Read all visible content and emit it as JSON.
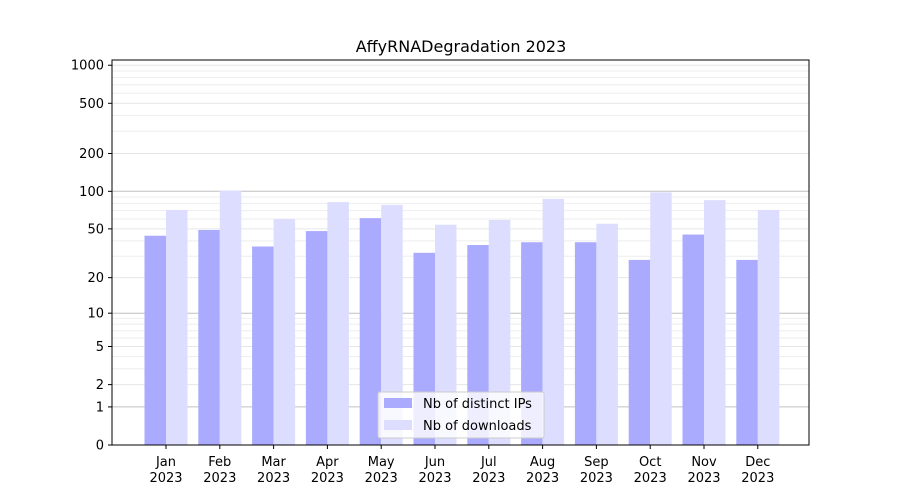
{
  "chart_data": {
    "type": "bar",
    "title": "AffyRNADegradation 2023",
    "xlabel": "",
    "ylabel": "",
    "y_scale": "log1p",
    "ylim": [
      0,
      1100
    ],
    "y_ticks": [
      0,
      1,
      2,
      5,
      10,
      20,
      50,
      100,
      200,
      500,
      1000
    ],
    "grid": "horizontal",
    "legend_position": "bottom-center",
    "categories": [
      [
        "Jan",
        "2023"
      ],
      [
        "Feb",
        "2023"
      ],
      [
        "Mar",
        "2023"
      ],
      [
        "Apr",
        "2023"
      ],
      [
        "May",
        "2023"
      ],
      [
        "Jun",
        "2023"
      ],
      [
        "Jul",
        "2023"
      ],
      [
        "Aug",
        "2023"
      ],
      [
        "Sep",
        "2023"
      ],
      [
        "Oct",
        "2023"
      ],
      [
        "Nov",
        "2023"
      ],
      [
        "Dec",
        "2023"
      ]
    ],
    "series": [
      {
        "name": "Nb of distinct IPs",
        "color": "#aaaaff",
        "values": [
          44,
          49,
          36,
          48,
          61,
          32,
          37,
          39,
          39,
          28,
          45,
          28
        ]
      },
      {
        "name": "Nb of downloads",
        "color": "#ddddff",
        "values": [
          71,
          101,
          60,
          82,
          78,
          54,
          59,
          87,
          55,
          98,
          85,
          71
        ]
      }
    ]
  }
}
